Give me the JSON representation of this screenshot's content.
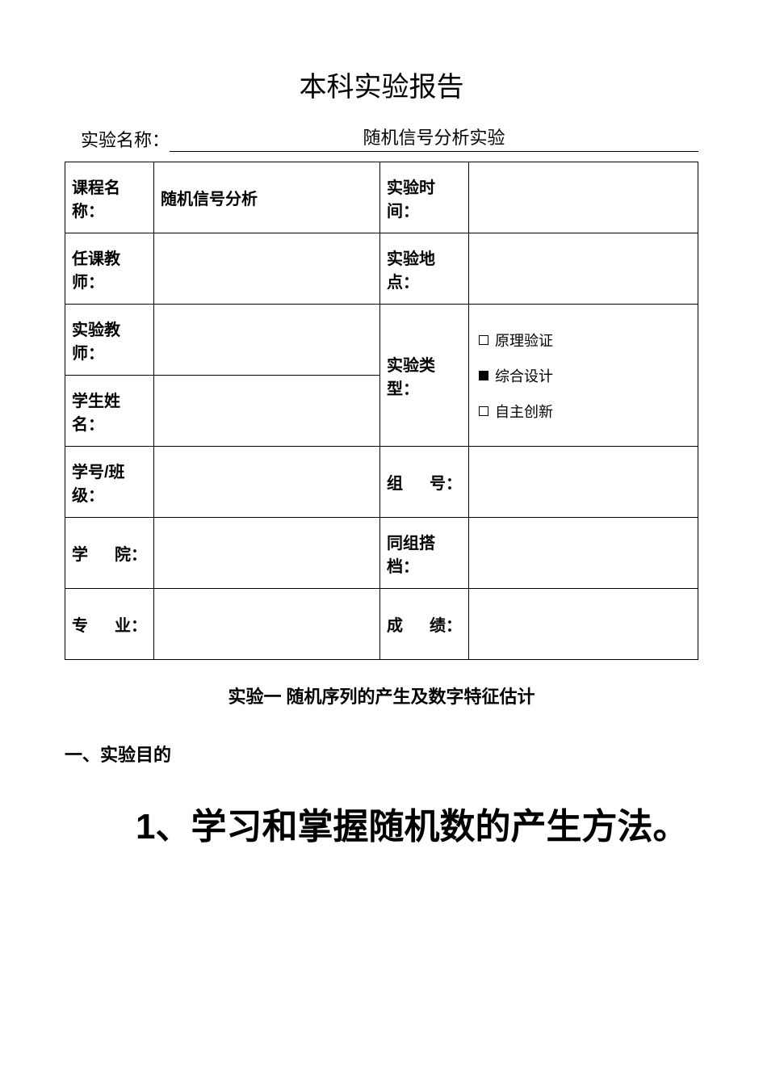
{
  "title": "本科实验报告",
  "expNameLabel": "实验名称：",
  "expNameValue": "随机信号分析实验",
  "table": {
    "courseNameLabel": "课程名称：",
    "courseNameValue": "随机信号分析",
    "expTimeLabel": "实验时间：",
    "expTimeValue": "",
    "teacherLabel": "任课教师：",
    "teacherValue": "",
    "expLocationLabel": "实验地点：",
    "expLocationValue": "",
    "expTeacherLabel": "实验教师：",
    "expTeacherValue": "",
    "expTypeLabel": "实验类型：",
    "typeOptions": {
      "opt1": "原理验证",
      "opt2": "综合设计",
      "opt3": "自主创新"
    },
    "studentNameLabel": "学生姓名：",
    "studentNameValue": "",
    "studentNoLabel": "学号/班级：",
    "studentNoValue": "",
    "groupNoLabel_c1": "组",
    "groupNoLabel_c2": "号：",
    "groupNoValue": "",
    "collegeLabel_c1": "学",
    "collegeLabel_c2": "院：",
    "collegeValue": "",
    "partnerLabel": "同组搭档：",
    "partnerValue": "",
    "majorLabel_c1": "专",
    "majorLabel_c2": "业：",
    "majorValue": "",
    "scoreLabel_c1": "成",
    "scoreLabel_c2": "绩：",
    "scoreValue": ""
  },
  "subtitle": "实验一  随机序列的产生及数字特征估计",
  "sectionHeading": "一、实验目的",
  "bigPoint": "1、学习和掌握随机数的产生方法。"
}
